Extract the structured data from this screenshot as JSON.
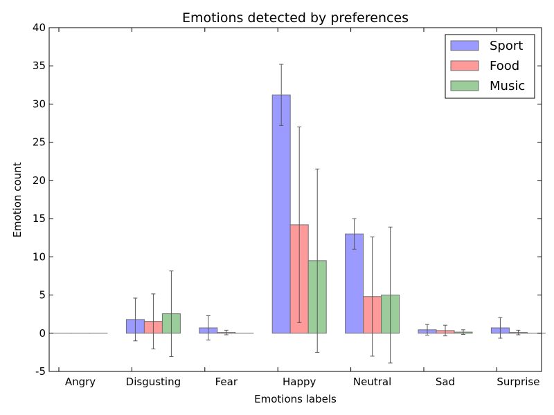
{
  "chart_data": {
    "type": "bar",
    "title": "Emotions detected by preferences",
    "xlabel": "Emotions labels",
    "ylabel": "Emotion count",
    "ylim": [
      -5,
      40
    ],
    "yticks": [
      -5,
      0,
      5,
      10,
      15,
      20,
      25,
      30,
      35,
      40
    ],
    "grid": false,
    "legend_position": "top-right",
    "categories": [
      "Angry",
      "Disgusting",
      "Fear",
      "Happy",
      "Neutral",
      "Sad",
      "Surprise"
    ],
    "series": [
      {
        "name": "Sport",
        "color": "#9a9aff",
        "values": [
          0,
          1.8,
          0.7,
          31.2,
          13.0,
          0.45,
          0.7
        ],
        "errors": [
          0,
          2.8,
          1.6,
          4.0,
          2.0,
          0.7,
          1.35
        ]
      },
      {
        "name": "Food",
        "color": "#ff9a9a",
        "values": [
          0,
          1.55,
          0.1,
          14.2,
          4.8,
          0.35,
          0.1
        ],
        "errors": [
          0,
          3.6,
          0.3,
          12.8,
          7.8,
          0.7,
          0.3
        ]
      },
      {
        "name": "Music",
        "color": "#9acd9a",
        "values": [
          0,
          2.55,
          0,
          9.5,
          5.0,
          0.15,
          0
        ],
        "errors": [
          0,
          5.6,
          0,
          12.0,
          8.9,
          0.3,
          0
        ]
      }
    ]
  }
}
